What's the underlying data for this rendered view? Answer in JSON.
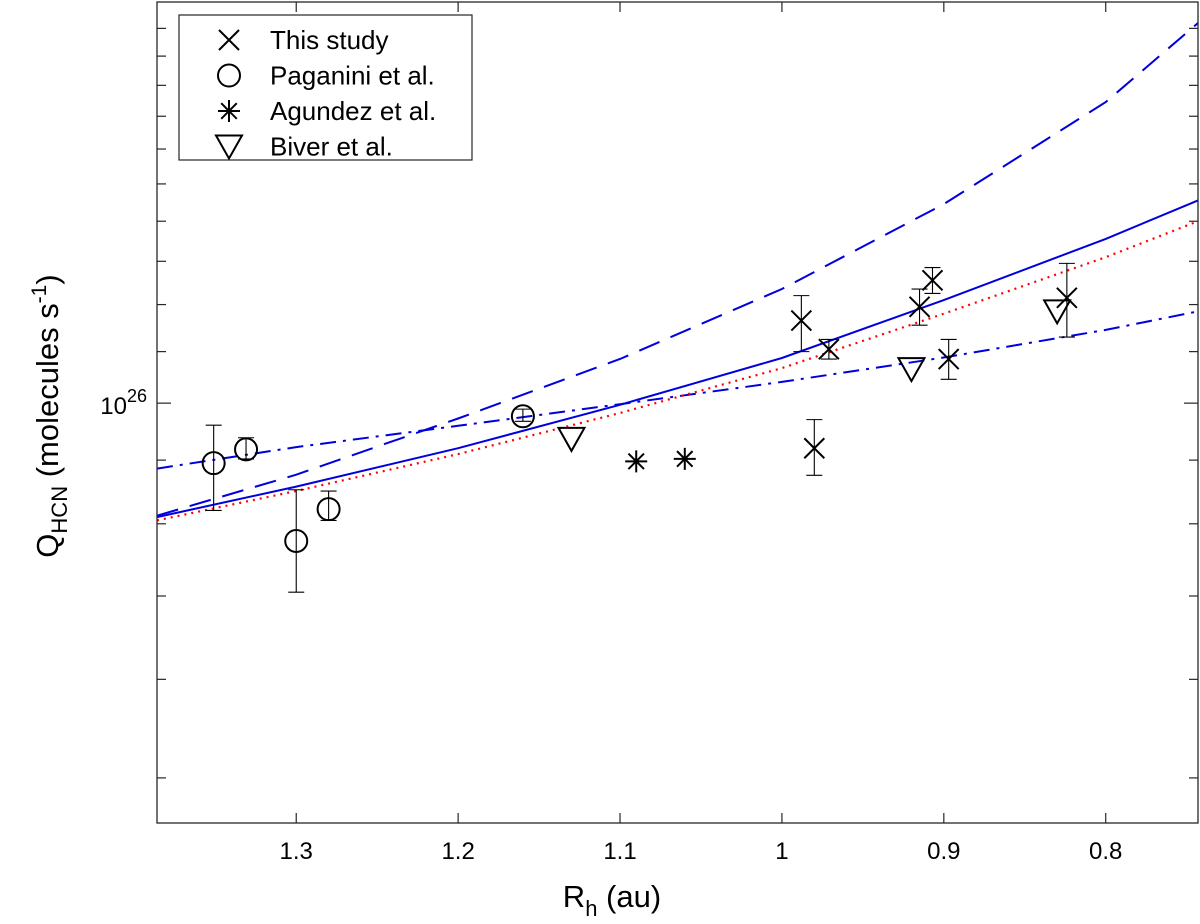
{
  "chart_data": {
    "type": "scatter",
    "title": "",
    "xlabel": {
      "main": "R",
      "sub": "h",
      "rest": " (au)"
    },
    "ylabel": {
      "main": "Q",
      "sub": "HCN",
      "rest_pre": " (molecules s",
      "sup": "-1",
      "rest_post": ")"
    },
    "x_reversed": true,
    "xlim": [
      1.386,
      0.743
    ],
    "y_scale": "log",
    "ylim": [
      4.6e+25,
      2.1e+26
    ],
    "x_ticks": [
      1.3,
      1.2,
      1.1,
      1.0,
      0.9,
      0.8
    ],
    "x_tick_labels": [
      "1.3",
      "1.2",
      "1.1",
      "1",
      "0.9",
      "0.8"
    ],
    "y_ticks": [
      5e+25,
      6e+25,
      7e+25,
      8e+25,
      9e+25,
      1e+26,
      1.1e+26,
      1.2e+26,
      1.3e+26,
      1.4e+26,
      1.5e+26,
      1.6e+26,
      1.7e+26,
      1.8e+26,
      1.9e+26,
      2e+26
    ],
    "y_tick_labels": [
      {
        "base": "10",
        "exp": "26",
        "value": 1e+26
      }
    ],
    "legend": {
      "position": "top-left",
      "entries": [
        {
          "label": "This study",
          "marker": "x"
        },
        {
          "label": "Paganini et al.",
          "marker": "circle"
        },
        {
          "label": "Agundez et al.",
          "marker": "asterisk"
        },
        {
          "label": "Biver et al.",
          "marker": "triangle-down"
        }
      ]
    },
    "series": [
      {
        "name": "This study",
        "marker": "x",
        "points": [
          {
            "x": 0.988,
            "y": 1.165e+26,
            "err_low": 1.1e+26,
            "err_high": 1.22e+26
          },
          {
            "x": 0.971,
            "y": 1.105e+26,
            "err_low": 1.085e+26,
            "err_high": 1.125e+26
          },
          {
            "x": 0.98,
            "y": 9.2e+25,
            "err_low": 8.75e+25,
            "err_high": 9.7e+25
          },
          {
            "x": 0.915,
            "y": 1.195e+26,
            "err_low": 1.155e+26,
            "err_high": 1.235e+26
          },
          {
            "x": 0.907,
            "y": 1.255e+26,
            "err_low": 1.225e+26,
            "err_high": 1.285e+26
          },
          {
            "x": 0.897,
            "y": 1.085e+26,
            "err_low": 1.045e+26,
            "err_high": 1.125e+26
          },
          {
            "x": 0.824,
            "y": 1.215e+26,
            "err_low": 1.13e+26,
            "err_high": 1.295e+26
          }
        ]
      },
      {
        "name": "Paganini et al.",
        "marker": "circle",
        "points": [
          {
            "x": 1.351,
            "y": 8.95e+25,
            "err_low": 8.2e+25,
            "err_high": 9.6e+25
          },
          {
            "x": 1.331,
            "y": 9.18e+25,
            "err_low": 9.02e+25,
            "err_high": 9.38e+25
          },
          {
            "x": 1.3,
            "y": 7.75e+25,
            "err_low": 7.05e+25,
            "err_high": 8.52e+25
          },
          {
            "x": 1.28,
            "y": 8.22e+25,
            "err_low": 8.05e+25,
            "err_high": 8.5e+25
          },
          {
            "x": 1.16,
            "y": 9.76e+25,
            "err_low": 9.67e+25,
            "err_high": 9.89e+25
          }
        ]
      },
      {
        "name": "Agundez et al.",
        "marker": "asterisk",
        "points": [
          {
            "x": 1.09,
            "y": 8.98e+25
          },
          {
            "x": 1.06,
            "y": 9.02e+25
          }
        ]
      },
      {
        "name": "Biver et al.",
        "marker": "triangle-down",
        "points": [
          {
            "x": 1.13,
            "y": 9.36e+25
          },
          {
            "x": 0.92,
            "y": 1.065e+26
          },
          {
            "x": 0.83,
            "y": 1.185e+26
          }
        ]
      }
    ],
    "fits": [
      {
        "name": "solid fit",
        "style": "solid",
        "color": "#0000dd",
        "points": [
          [
            1.386,
            8.1e+25
          ],
          [
            1.3,
            8.57e+25
          ],
          [
            1.2,
            9.2e+25
          ],
          [
            1.1,
            9.97e+25
          ],
          [
            1.0,
            1.087e+26
          ],
          [
            0.9,
            1.21e+26
          ],
          [
            0.8,
            1.355e+26
          ],
          [
            0.743,
            1.455e+26
          ]
        ]
      },
      {
        "name": "dashed fit",
        "style": "dashed",
        "color": "#0000dd",
        "points": [
          [
            1.386,
            8.12e+25
          ],
          [
            1.3,
            8.76e+25
          ],
          [
            1.2,
            9.72e+25
          ],
          [
            1.1,
            1.085e+26
          ],
          [
            1.0,
            1.235e+26
          ],
          [
            0.9,
            1.445e+26
          ],
          [
            0.8,
            1.745e+26
          ],
          [
            0.743,
            2.02e+26
          ]
        ]
      },
      {
        "name": "dash-dot fit",
        "style": "dashdot",
        "color": "#0000dd",
        "points": [
          [
            1.386,
            8.86e+25
          ],
          [
            1.3,
            9.22e+25
          ],
          [
            1.2,
            9.59e+25
          ],
          [
            1.1,
            9.98e+25
          ],
          [
            1.0,
            1.04e+26
          ],
          [
            0.9,
            1.088e+26
          ],
          [
            0.8,
            1.145e+26
          ],
          [
            0.743,
            1.185e+26
          ]
        ]
      },
      {
        "name": "dotted fit",
        "style": "dotted",
        "color": "#ff0000",
        "points": [
          [
            1.386,
            8.05e+25
          ],
          [
            1.3,
            8.5e+25
          ],
          [
            1.2,
            9.1e+25
          ],
          [
            1.1,
            9.82e+25
          ],
          [
            1.0,
            1.067e+26
          ],
          [
            0.9,
            1.18e+26
          ],
          [
            0.8,
            1.31e+26
          ],
          [
            0.743,
            1.4e+26
          ]
        ]
      }
    ]
  }
}
